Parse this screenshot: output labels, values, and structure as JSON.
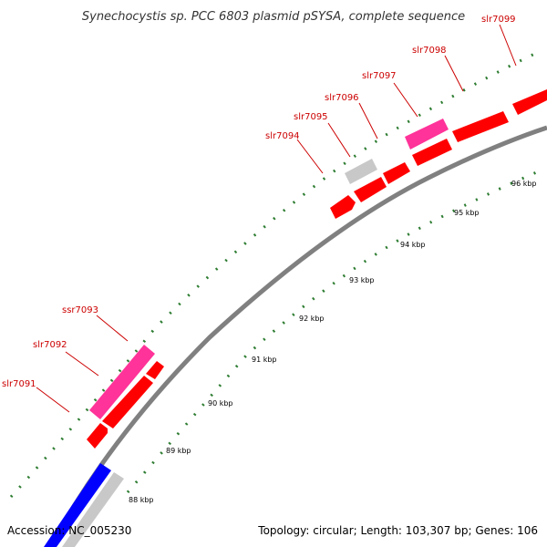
{
  "title": "Synechocystis sp. PCC 6803 plasmid pSYSA, complete sequence",
  "footer": {
    "accession": "Accession: NC_005230",
    "summary": "Topology: circular; Length: 103,307 bp; Genes: 106"
  },
  "colors": {
    "backbone": "#7f7f7f",
    "cds_red": "#ff0000",
    "pink": "#ff3399",
    "grey_feature": "#c8c8c8",
    "blue_feature": "#0000ff",
    "tick_green": "#2e7d32",
    "label_red": "#cc0000"
  },
  "kbp_ticks": [
    "88 kbp",
    "89 kbp",
    "90 kbp",
    "91 kbp",
    "92 kbp",
    "93 kbp",
    "94 kbp",
    "95 kbp",
    "96 kbp"
  ],
  "gene_labels": [
    "slr7091",
    "slr7092",
    "ssr7093",
    "slr7094",
    "slr7095",
    "slr7096",
    "slr7097",
    "slr7098",
    "slr7099"
  ]
}
